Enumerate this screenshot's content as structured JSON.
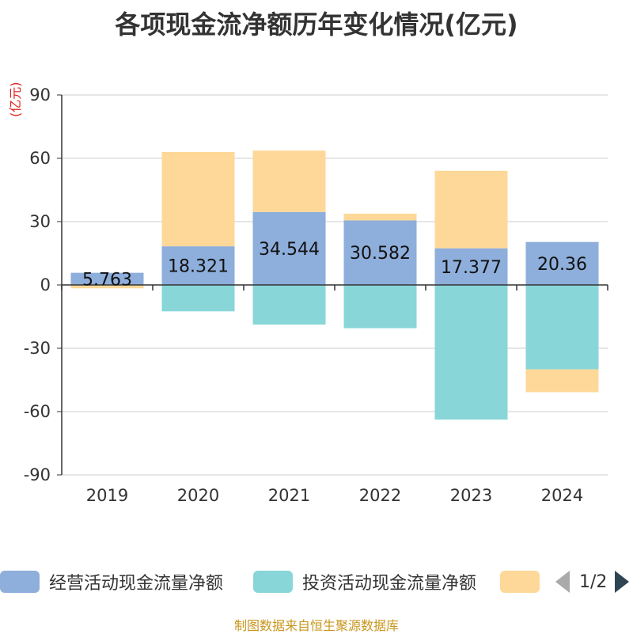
{
  "chart_data": {
    "type": "bar",
    "stacked": true,
    "title": "各项现金流净额历年变化情况(亿元)",
    "ylabel": "(亿元)",
    "xlabel": "",
    "ylim": [
      -90,
      90
    ],
    "yticks": [
      90,
      60,
      30,
      0,
      -30,
      -60,
      -90
    ],
    "categories": [
      "2019",
      "2020",
      "2021",
      "2022",
      "2023",
      "2024"
    ],
    "series": [
      {
        "name": "经营活动现金流量净额",
        "color": "#8eaedb",
        "values": [
          5.763,
          18.321,
          34.544,
          30.582,
          17.377,
          20.36
        ],
        "data_labels": [
          "5.763",
          "18.321",
          "34.544",
          "30.582",
          "17.377",
          "20.36"
        ]
      },
      {
        "name": "投资活动现金流量净额",
        "color": "#88d6d8",
        "values": [
          0,
          -12.5,
          -18.8,
          -20.5,
          -63.8,
          -40.0
        ]
      },
      {
        "name": "",
        "color": "#fed898",
        "values": [
          -1.6,
          44.7,
          29.1,
          3.2,
          36.7,
          -10.8
        ]
      }
    ]
  },
  "legend": {
    "items": [
      "经营活动现金流量净额",
      "投资活动现金流量净额",
      ""
    ],
    "pager": "1/2"
  },
  "footer": "制图数据来自恒生聚源数据库"
}
